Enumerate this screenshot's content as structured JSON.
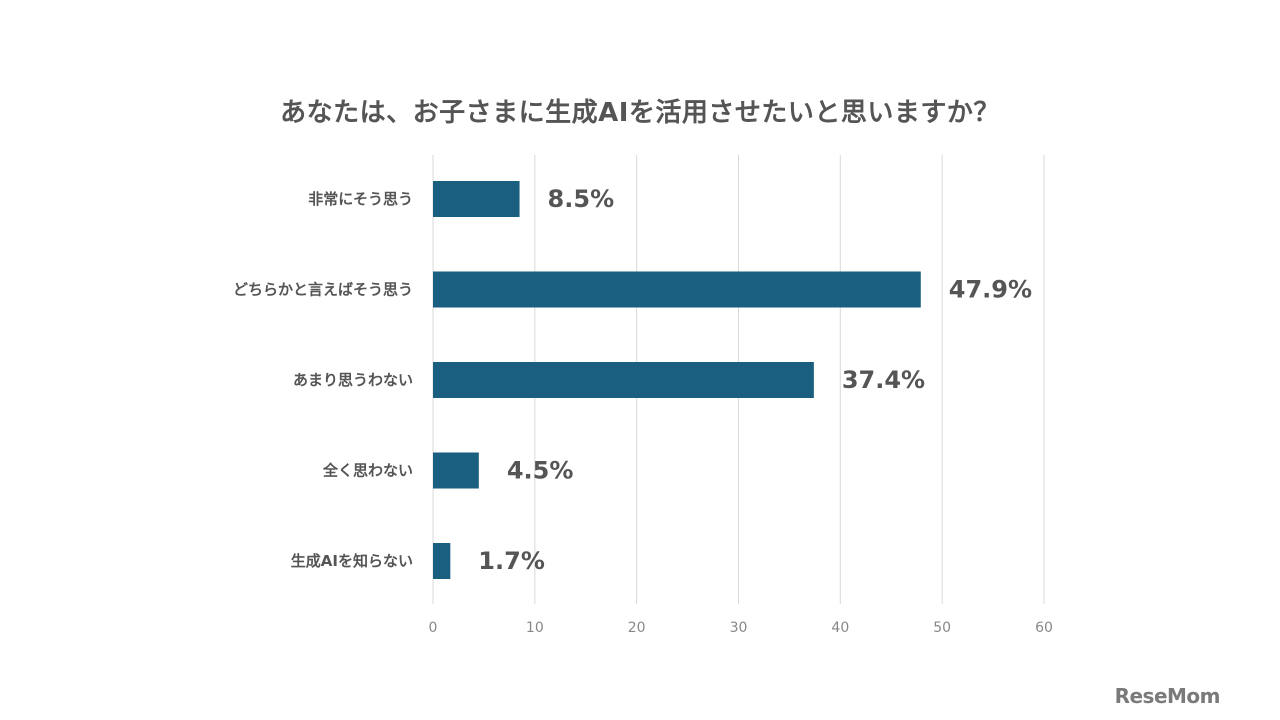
{
  "title": "あなたは、お子さまに生成AIを活用させたいと思いますか？",
  "logo": "ReseMom",
  "colors": {
    "bar": "#1a5f80",
    "grid": "#d9d9d9",
    "text": "#555555",
    "tick": "#888888"
  },
  "chart_data": {
    "type": "bar",
    "orientation": "horizontal",
    "title": "あなたは、お子さまに生成AIを活用させたいと思いますか？",
    "categories": [
      "非常にそう思う",
      "どちらかと言えばそう思う",
      "あまり思うわない",
      "全く思わない",
      "生成AIを知らない"
    ],
    "values": [
      8.5,
      47.9,
      37.4,
      4.5,
      1.7
    ],
    "data_labels": [
      "8.5%",
      "47.9%",
      "37.4%",
      "4.5%",
      "1.7%"
    ],
    "xlim": [
      0,
      60
    ],
    "xticks": [
      0,
      10,
      20,
      30,
      40,
      50,
      60
    ],
    "xlabel": "",
    "ylabel": "",
    "grid": true,
    "legend": "none"
  }
}
